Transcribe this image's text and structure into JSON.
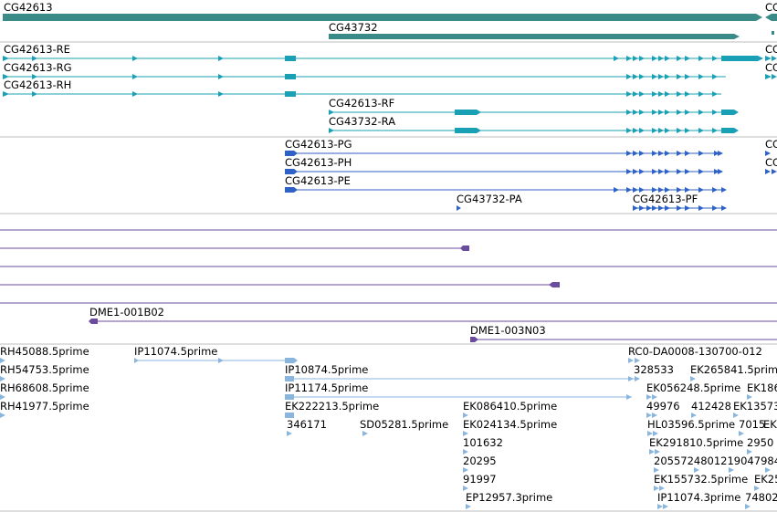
{
  "colors": {
    "gene": "#3a8b87",
    "transcript_rna": "#1aa0b5",
    "transcript_protein": "#2f62c6",
    "cdna": "#6a4b9e",
    "est": "#8ab6de",
    "divider": "#bdbdbd"
  },
  "genes": [
    {
      "label": "CG42613",
      "label_right": "CG"
    },
    {
      "label": "CG43732"
    }
  ],
  "transcripts": [
    {
      "label": "CG42613-RE",
      "label_right": "CG"
    },
    {
      "label": "CG42613-RG",
      "label_right": "CG"
    },
    {
      "label": "CG42613-RH"
    },
    {
      "label": "CG42613-RF"
    },
    {
      "label": "CG43732-RA"
    }
  ],
  "proteins": [
    {
      "label": "CG42613-PG",
      "label_right": "CG"
    },
    {
      "label": "CG42613-PH",
      "label_right": "CG"
    },
    {
      "label": "CG42613-PE"
    },
    {
      "label": "CG43732-PA"
    },
    {
      "label": "CG42613-PF"
    }
  ],
  "cdna": [
    {
      "label": ""
    },
    {
      "label": ""
    },
    {
      "label": ""
    },
    {
      "label": ""
    },
    {
      "label": ""
    },
    {
      "label": "DME1-001B02"
    },
    {
      "label": "DME1-003N03"
    }
  ],
  "ests": [
    "RH45088.5prime",
    "IP11074.5prime",
    "RC0-DA0008-130700-012",
    "RH54753.5prime",
    "IP10874.5prime",
    "328533",
    "EK265841.5prime",
    "RH68608.5prime",
    "IP11174.5prime",
    "EK056248.5prime",
    "EK186",
    "RH41977.5prime",
    "EK222213.5prime",
    "EK086410.5prime",
    "49976",
    "412428",
    "EK13573",
    "346171",
    "SD05281.5prime",
    "EK024134.5prime",
    "HL03596.5prime",
    "7015",
    "EK",
    "101632",
    "EK291810.5prime",
    "2950",
    "20295",
    "2055724801219047984",
    "91997",
    "EK155732.5prime",
    "EK25",
    "EP12957.3prime",
    "IP11074.3prime",
    "74802"
  ]
}
